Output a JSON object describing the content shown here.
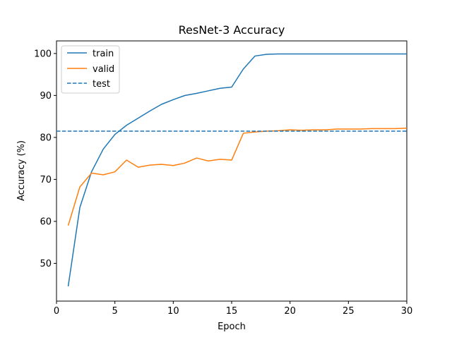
{
  "chart_data": {
    "type": "line",
    "title": "ResNet-3 Accuracy",
    "xlabel": "Epoch",
    "ylabel": "Accuracy (%)",
    "xlim": [
      0.0,
      30.0
    ],
    "ylim": [
      41.0,
      103.0
    ],
    "xticks": [
      0,
      5,
      10,
      15,
      20,
      25,
      30
    ],
    "yticks": [
      50,
      60,
      70,
      80,
      90,
      100
    ],
    "grid": false,
    "legend_position": "top-left",
    "x": [
      1,
      2,
      3,
      4,
      5,
      6,
      7,
      8,
      9,
      10,
      11,
      12,
      13,
      14,
      15,
      16,
      17,
      18,
      19,
      20,
      21,
      22,
      23,
      24,
      25,
      26,
      27,
      28,
      29,
      30
    ],
    "series": [
      {
        "name": "train",
        "color": "#1f77b4",
        "style": "solid",
        "values": [
          44.5,
          63.3,
          71.8,
          77.2,
          80.7,
          82.9,
          84.6,
          86.3,
          87.9,
          89.0,
          90.0,
          90.5,
          91.1,
          91.7,
          92.0,
          96.3,
          99.4,
          99.8,
          99.9,
          99.9,
          99.9,
          99.9,
          99.9,
          99.9,
          99.9,
          99.9,
          99.9,
          99.9,
          99.9,
          99.9
        ]
      },
      {
        "name": "valid",
        "color": "#ff7f0e",
        "style": "solid",
        "values": [
          59.0,
          68.2,
          71.5,
          71.1,
          71.8,
          74.6,
          72.9,
          73.4,
          73.6,
          73.3,
          73.9,
          75.1,
          74.4,
          74.8,
          74.6,
          81.0,
          81.3,
          81.5,
          81.6,
          81.8,
          81.7,
          81.8,
          81.8,
          82.0,
          82.0,
          82.0,
          82.1,
          82.1,
          82.1,
          82.2
        ]
      },
      {
        "name": "test",
        "color": "#1f77b4",
        "style": "dashed",
        "constant": 81.5
      }
    ]
  }
}
